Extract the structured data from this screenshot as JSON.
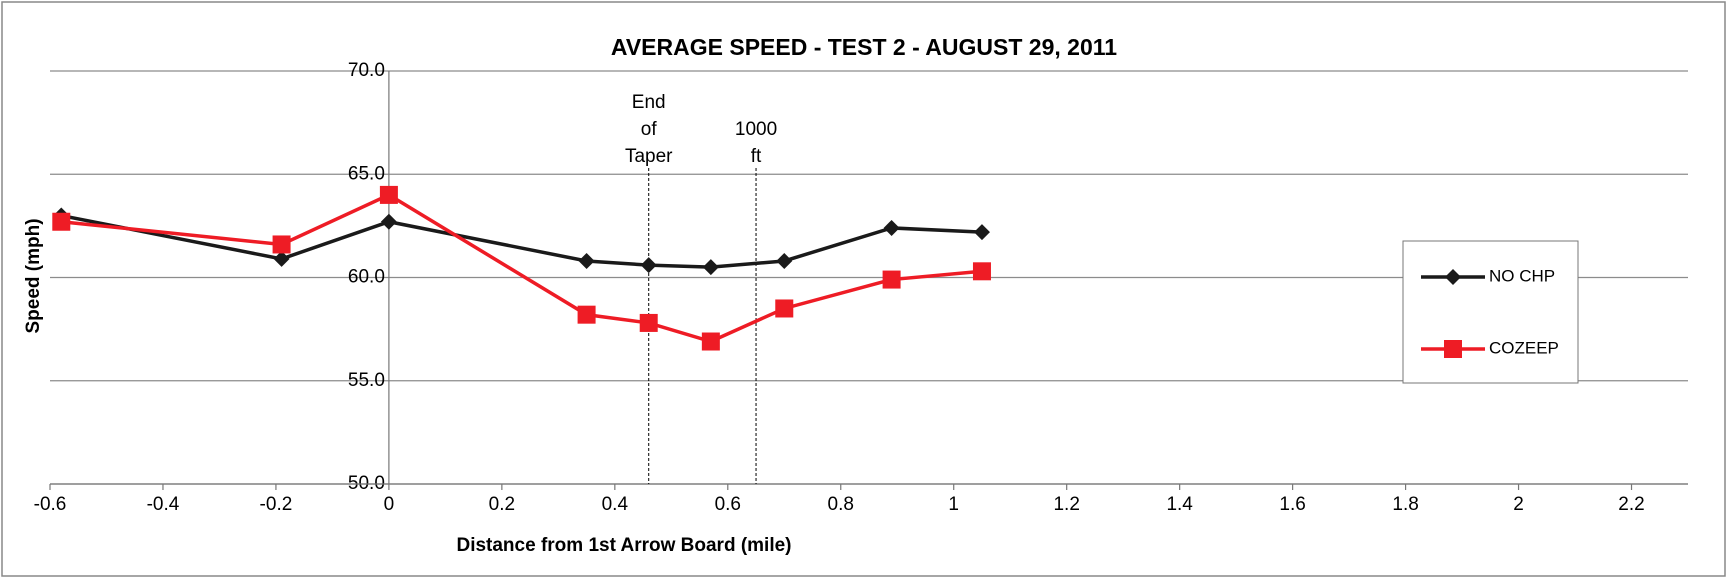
{
  "chart_data": {
    "type": "line",
    "title": "AVERAGE SPEED - TEST 2 - AUGUST 29, 2011",
    "xlabel": "Distance from 1st Arrow Board (mile)",
    "ylabel": "Speed (mph)",
    "x": [
      -0.58,
      -0.19,
      0,
      0.35,
      0.46,
      0.57,
      0.7,
      0.89,
      1.05
    ],
    "series": [
      {
        "name": "NO CHP",
        "color": "#1a1a1a",
        "marker": "diamond",
        "values": [
          63.0,
          60.9,
          62.7,
          60.8,
          60.6,
          60.5,
          60.8,
          62.4,
          62.2
        ]
      },
      {
        "name": "COZEEP",
        "color": "#ee1c25",
        "marker": "square",
        "values": [
          62.7,
          61.6,
          64.0,
          58.2,
          57.8,
          56.9,
          58.5,
          59.9,
          60.3
        ]
      }
    ],
    "xlim": [
      -0.6,
      2.3
    ],
    "xticks": [
      -0.6,
      -0.4,
      -0.2,
      0,
      0.2,
      0.4,
      0.6,
      0.8,
      1,
      1.2,
      1.4,
      1.6,
      1.8,
      2,
      2.2
    ],
    "ylim": [
      50,
      70
    ],
    "yticks": [
      {
        "value": 50,
        "label": "50.0"
      },
      {
        "value": 55,
        "label": "55.0"
      },
      {
        "value": 60,
        "label": "60.0"
      },
      {
        "value": 65,
        "label": "65.0"
      },
      {
        "value": 70,
        "label": "70.0"
      }
    ],
    "grid": true,
    "legend": "right",
    "annotations": [
      {
        "lines": [
          "End",
          "of",
          "Taper"
        ],
        "x": 0.46
      },
      {
        "lines": [
          "1000",
          "ft"
        ],
        "x": 0.65
      }
    ]
  }
}
